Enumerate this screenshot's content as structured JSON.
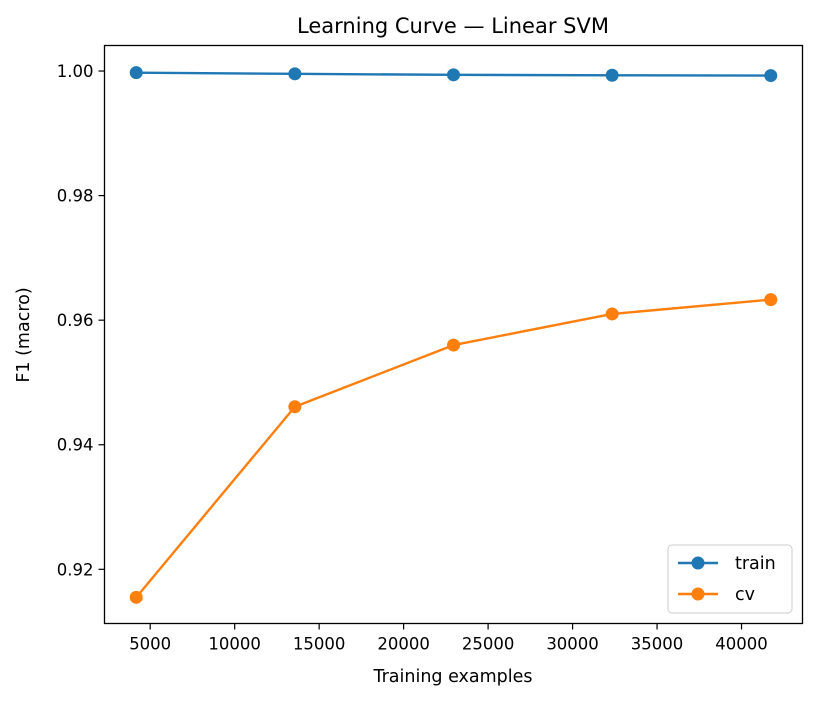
{
  "chart_data": {
    "type": "line",
    "title": "Learning Curve — Linear SVM",
    "xlabel": "Training examples",
    "ylabel": "F1 (macro)",
    "x": [
      4173,
      13563,
      22952,
      32342,
      41731
    ],
    "series": [
      {
        "name": "train",
        "color": "#1f77b4",
        "values": [
          0.99974,
          0.99955,
          0.99939,
          0.99932,
          0.99927
        ]
      },
      {
        "name": "cv",
        "color": "#ff7f0e",
        "values": [
          0.9155,
          0.9461,
          0.956,
          0.961,
          0.9633
        ]
      }
    ],
    "xlim": [
      2295,
      43609
    ],
    "ylim": [
      0.9113,
      1.0041
    ],
    "xticks": [
      5000,
      10000,
      15000,
      20000,
      25000,
      30000,
      35000,
      40000
    ],
    "yticks": [
      0.92,
      0.94,
      0.96,
      0.98,
      1.0
    ],
    "xtick_labels": [
      "5000",
      "10000",
      "15000",
      "20000",
      "25000",
      "30000",
      "35000",
      "40000"
    ],
    "ytick_labels": [
      "0.92",
      "0.94",
      "0.96",
      "0.98",
      "1.00"
    ],
    "grid": false,
    "legend_position": "lower-right"
  }
}
